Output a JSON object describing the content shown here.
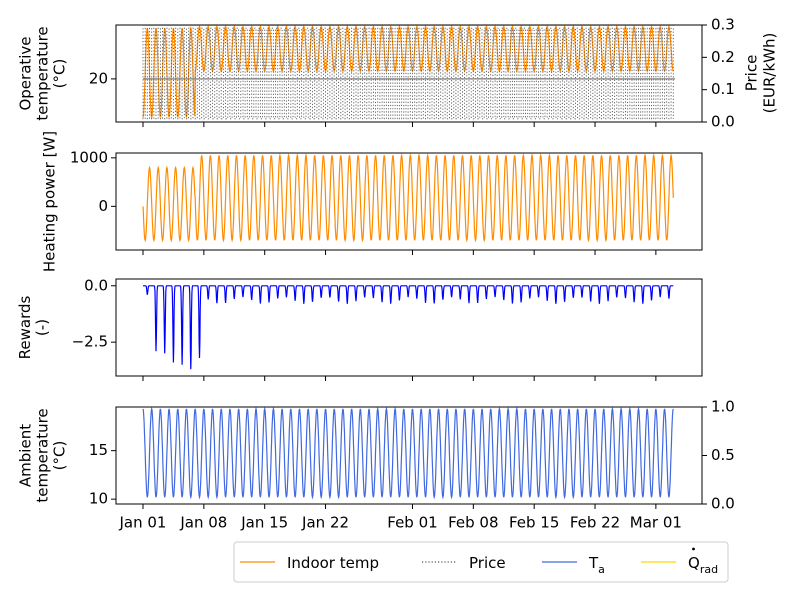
{
  "chart_data": [
    {
      "type": "line",
      "ylabel_lines": [
        "Operative",
        "temperature",
        "(°C)"
      ],
      "ylabel2_lines": [
        "Price",
        "(EUR/kWh)"
      ],
      "yticks": [
        {
          "value": 20,
          "label": "20"
        }
      ],
      "y2ticks": [
        {
          "value": 0.0,
          "label": "0.0"
        },
        {
          "value": 0.1,
          "label": "0.1"
        },
        {
          "value": 0.2,
          "label": "0.2"
        },
        {
          "value": 0.3,
          "label": "0.3"
        }
      ],
      "ylim": [
        17.2,
        23.5
      ],
      "y2lim": [
        0.0,
        0.3
      ],
      "comfort_bounds": [
        20,
        23.5
      ],
      "series": [
        {
          "name": "Indoor temp",
          "color": "#ff8c00",
          "style": "solid",
          "desc": "daily oscillation; early days Jan 01-06 swing 17.5-23.3 °C, afterwards 20.5-23.4 °C",
          "early": {
            "until_day": 6,
            "min": 17.5,
            "max": 23.3
          },
          "late": {
            "min": 20.5,
            "max": 23.4
          }
        },
        {
          "name": "Price",
          "color": "#555555",
          "style": "dotted",
          "desc": "two-level price switching between ~0.01 and ~0.29 EUR/kWh several times per day",
          "low": 0.01,
          "high": 0.29
        }
      ]
    },
    {
      "type": "line",
      "ylabel_lines": [
        "Heating power [W]"
      ],
      "yticks": [
        {
          "value": 0,
          "label": "0"
        },
        {
          "value": 1000,
          "label": "1000"
        }
      ],
      "ylim": [
        -900,
        1100
      ],
      "series": [
        {
          "name": "Heating power",
          "color": "#ff8c00",
          "style": "solid",
          "desc": "daily oscillation; Jan 01-06 roughly -700..800 W with irregular shapes, afterwards -700..1050 W",
          "early": {
            "until_day": 6,
            "min": -700,
            "max": 800
          },
          "late": {
            "min": -700,
            "max": 1050
          }
        }
      ]
    },
    {
      "type": "line",
      "ylabel_lines": [
        "Rewards",
        "(-)"
      ],
      "yticks": [
        {
          "value": 0.0,
          "label": "0.0"
        },
        {
          "value": -2.5,
          "label": "−2.5"
        }
      ],
      "ylim": [
        -4.0,
        0.3
      ],
      "series": [
        {
          "name": "Rewards",
          "color": "#0000ff",
          "style": "solid",
          "desc": "near 0 with daily negative dips; deep dips Jan 01-06 reaching about -3.7, later dips about -0.5 to -0.8",
          "early_dips": [
            -0.4,
            -2.9,
            -3.0,
            -3.4,
            -3.5,
            -3.7,
            -3.2
          ],
          "late_dip_min": -0.8,
          "late_dip_max": -0.5
        }
      ]
    },
    {
      "type": "line",
      "ylabel_lines": [
        "Ambient",
        "temperature",
        "(°C)"
      ],
      "yticks": [
        {
          "value": 10,
          "label": "10"
        },
        {
          "value": 15,
          "label": "15"
        }
      ],
      "y2ticks": [
        {
          "value": 0.0,
          "label": "0.0"
        },
        {
          "value": 0.5,
          "label": "0.5"
        },
        {
          "value": 1.0,
          "label": "1.0"
        }
      ],
      "ylim": [
        9.5,
        19.5
      ],
      "y2lim": [
        0.0,
        1.0
      ],
      "series": [
        {
          "name": "T_a",
          "color": "#4169e1",
          "style": "solid",
          "desc": "sinusoidal daily oscillation between about 10.2 and 19.3 °C",
          "min": 10.2,
          "max": 19.3
        }
      ]
    }
  ],
  "x_axis": {
    "start": "Jan 01",
    "end_day": 61,
    "ticks": [
      {
        "day": 0,
        "label": "Jan 01"
      },
      {
        "day": 7,
        "label": "Jan 08"
      },
      {
        "day": 14,
        "label": "Jan 15"
      },
      {
        "day": 21,
        "label": "Jan 22"
      },
      {
        "day": 31,
        "label": "Feb 01"
      },
      {
        "day": 38,
        "label": "Feb 08"
      },
      {
        "day": 45,
        "label": "Feb 15"
      },
      {
        "day": 52,
        "label": "Feb 22"
      },
      {
        "day": 59,
        "label": "Mar 01"
      }
    ]
  },
  "legend": {
    "placement": "bottom-right",
    "items": [
      {
        "label": "Indoor temp",
        "color": "#ff8c00",
        "style": "solid"
      },
      {
        "label": "Price",
        "color": "#555555",
        "style": "dotted"
      },
      {
        "label": "T",
        "sub": "a",
        "color": "#4169e1",
        "style": "solid"
      },
      {
        "label": "Q",
        "sub": "rad",
        "dot": true,
        "color": "#ffd700",
        "style": "solid"
      }
    ]
  }
}
